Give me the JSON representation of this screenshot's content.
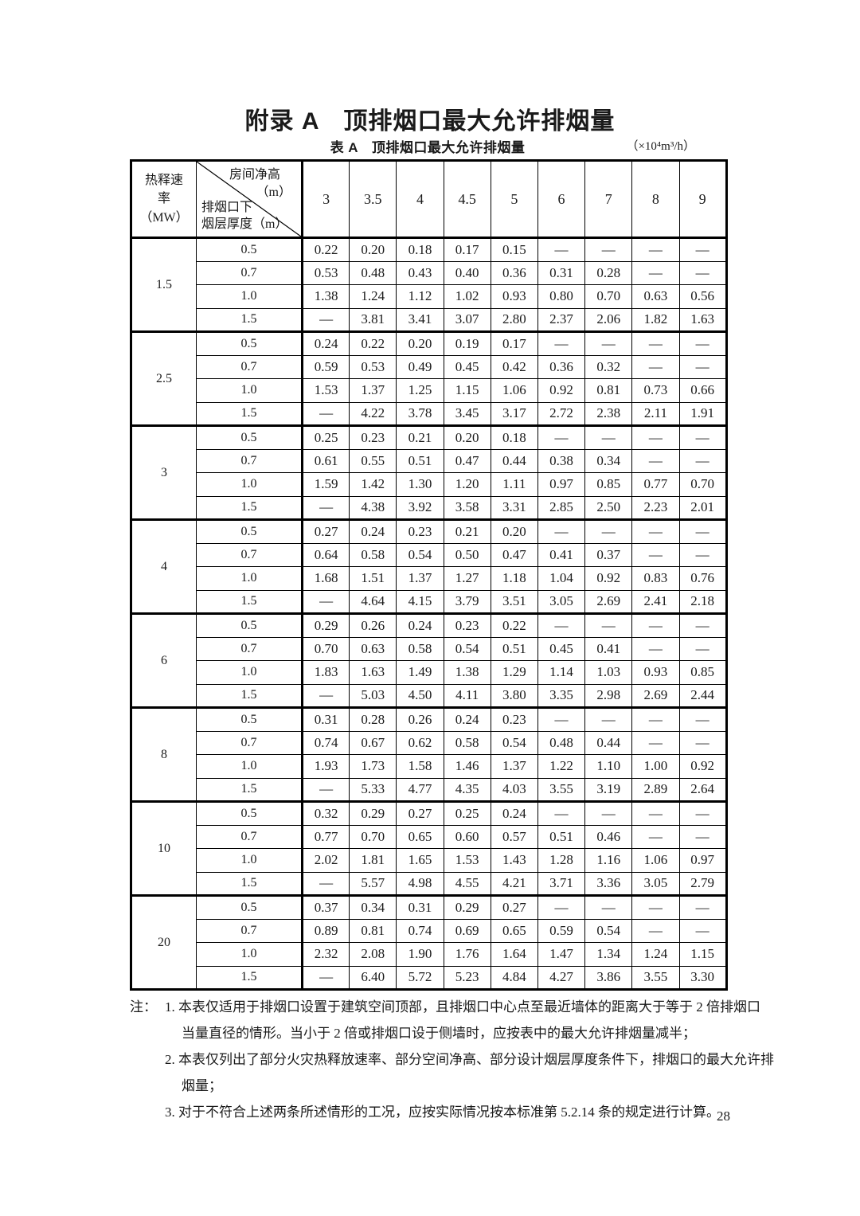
{
  "page": {
    "title": "附录 A　顶排烟口最大允许排烟量",
    "page_number": "28"
  },
  "caption": {
    "label": "表 A　顶排烟口最大允许排烟量",
    "unit": "（×10⁴m³/h）"
  },
  "table": {
    "row_axis_lines": [
      "热释速",
      "率",
      "（MW）"
    ],
    "corner": {
      "top_label": "房间净高",
      "top_unit": "（m）",
      "bottom_line1": "排烟口下",
      "bottom_line2": "烟层厚度（m）"
    },
    "columns": [
      "3",
      "3.5",
      "4",
      "4.5",
      "5",
      "6",
      "7",
      "8",
      "9"
    ],
    "blocks": [
      {
        "hrr": "1.5",
        "rows": [
          {
            "depth": "0.5",
            "values": [
              "0.22",
              "0.20",
              "0.18",
              "0.17",
              "0.15",
              "—",
              "—",
              "—",
              "—"
            ]
          },
          {
            "depth": "0.7",
            "values": [
              "0.53",
              "0.48",
              "0.43",
              "0.40",
              "0.36",
              "0.31",
              "0.28",
              "—",
              "—"
            ]
          },
          {
            "depth": "1.0",
            "values": [
              "1.38",
              "1.24",
              "1.12",
              "1.02",
              "0.93",
              "0.80",
              "0.70",
              "0.63",
              "0.56"
            ]
          },
          {
            "depth": "1.5",
            "values": [
              "—",
              "3.81",
              "3.41",
              "3.07",
              "2.80",
              "2.37",
              "2.06",
              "1.82",
              "1.63"
            ]
          }
        ]
      },
      {
        "hrr": "2.5",
        "rows": [
          {
            "depth": "0.5",
            "values": [
              "0.24",
              "0.22",
              "0.20",
              "0.19",
              "0.17",
              "—",
              "—",
              "—",
              "—"
            ]
          },
          {
            "depth": "0.7",
            "values": [
              "0.59",
              "0.53",
              "0.49",
              "0.45",
              "0.42",
              "0.36",
              "0.32",
              "—",
              "—"
            ]
          },
          {
            "depth": "1.0",
            "values": [
              "1.53",
              "1.37",
              "1.25",
              "1.15",
              "1.06",
              "0.92",
              "0.81",
              "0.73",
              "0.66"
            ]
          },
          {
            "depth": "1.5",
            "values": [
              "—",
              "4.22",
              "3.78",
              "3.45",
              "3.17",
              "2.72",
              "2.38",
              "2.11",
              "1.91"
            ]
          }
        ]
      },
      {
        "hrr": "3",
        "rows": [
          {
            "depth": "0.5",
            "values": [
              "0.25",
              "0.23",
              "0.21",
              "0.20",
              "0.18",
              "—",
              "—",
              "—",
              "—"
            ]
          },
          {
            "depth": "0.7",
            "values": [
              "0.61",
              "0.55",
              "0.51",
              "0.47",
              "0.44",
              "0.38",
              "0.34",
              "—",
              "—"
            ]
          },
          {
            "depth": "1.0",
            "values": [
              "1.59",
              "1.42",
              "1.30",
              "1.20",
              "1.11",
              "0.97",
              "0.85",
              "0.77",
              "0.70"
            ]
          },
          {
            "depth": "1.5",
            "values": [
              "—",
              "4.38",
              "3.92",
              "3.58",
              "3.31",
              "2.85",
              "2.50",
              "2.23",
              "2.01"
            ]
          }
        ]
      },
      {
        "hrr": "4",
        "rows": [
          {
            "depth": "0.5",
            "values": [
              "0.27",
              "0.24",
              "0.23",
              "0.21",
              "0.20",
              "—",
              "—",
              "—",
              "—"
            ]
          },
          {
            "depth": "0.7",
            "values": [
              "0.64",
              "0.58",
              "0.54",
              "0.50",
              "0.47",
              "0.41",
              "0.37",
              "—",
              "—"
            ]
          },
          {
            "depth": "1.0",
            "values": [
              "1.68",
              "1.51",
              "1.37",
              "1.27",
              "1.18",
              "1.04",
              "0.92",
              "0.83",
              "0.76"
            ]
          },
          {
            "depth": "1.5",
            "values": [
              "—",
              "4.64",
              "4.15",
              "3.79",
              "3.51",
              "3.05",
              "2.69",
              "2.41",
              "2.18"
            ]
          }
        ]
      },
      {
        "hrr": "6",
        "rows": [
          {
            "depth": "0.5",
            "values": [
              "0.29",
              "0.26",
              "0.24",
              "0.23",
              "0.22",
              "—",
              "—",
              "—",
              "—"
            ]
          },
          {
            "depth": "0.7",
            "values": [
              "0.70",
              "0.63",
              "0.58",
              "0.54",
              "0.51",
              "0.45",
              "0.41",
              "—",
              "—"
            ]
          },
          {
            "depth": "1.0",
            "values": [
              "1.83",
              "1.63",
              "1.49",
              "1.38",
              "1.29",
              "1.14",
              "1.03",
              "0.93",
              "0.85"
            ]
          },
          {
            "depth": "1.5",
            "values": [
              "—",
              "5.03",
              "4.50",
              "4.11",
              "3.80",
              "3.35",
              "2.98",
              "2.69",
              "2.44"
            ]
          }
        ]
      },
      {
        "hrr": "8",
        "rows": [
          {
            "depth": "0.5",
            "values": [
              "0.31",
              "0.28",
              "0.26",
              "0.24",
              "0.23",
              "—",
              "—",
              "—",
              "—"
            ]
          },
          {
            "depth": "0.7",
            "values": [
              "0.74",
              "0.67",
              "0.62",
              "0.58",
              "0.54",
              "0.48",
              "0.44",
              "—",
              "—"
            ]
          },
          {
            "depth": "1.0",
            "values": [
              "1.93",
              "1.73",
              "1.58",
              "1.46",
              "1.37",
              "1.22",
              "1.10",
              "1.00",
              "0.92"
            ]
          },
          {
            "depth": "1.5",
            "values": [
              "—",
              "5.33",
              "4.77",
              "4.35",
              "4.03",
              "3.55",
              "3.19",
              "2.89",
              "2.64"
            ]
          }
        ]
      },
      {
        "hrr": "10",
        "rows": [
          {
            "depth": "0.5",
            "values": [
              "0.32",
              "0.29",
              "0.27",
              "0.25",
              "0.24",
              "—",
              "—",
              "—",
              "—"
            ]
          },
          {
            "depth": "0.7",
            "values": [
              "0.77",
              "0.70",
              "0.65",
              "0.60",
              "0.57",
              "0.51",
              "0.46",
              "—",
              "—"
            ]
          },
          {
            "depth": "1.0",
            "values": [
              "2.02",
              "1.81",
              "1.65",
              "1.53",
              "1.43",
              "1.28",
              "1.16",
              "1.06",
              "0.97"
            ]
          },
          {
            "depth": "1.5",
            "values": [
              "—",
              "5.57",
              "4.98",
              "4.55",
              "4.21",
              "3.71",
              "3.36",
              "3.05",
              "2.79"
            ]
          }
        ]
      },
      {
        "hrr": "20",
        "rows": [
          {
            "depth": "0.5",
            "values": [
              "0.37",
              "0.34",
              "0.31",
              "0.29",
              "0.27",
              "—",
              "—",
              "—",
              "—"
            ]
          },
          {
            "depth": "0.7",
            "values": [
              "0.89",
              "0.81",
              "0.74",
              "0.69",
              "0.65",
              "0.59",
              "0.54",
              "—",
              "—"
            ]
          },
          {
            "depth": "1.0",
            "values": [
              "2.32",
              "2.08",
              "1.90",
              "1.76",
              "1.64",
              "1.47",
              "1.34",
              "1.24",
              "1.15"
            ]
          },
          {
            "depth": "1.5",
            "values": [
              "—",
              "6.40",
              "5.72",
              "5.23",
              "4.84",
              "4.27",
              "3.86",
              "3.55",
              "3.30"
            ]
          }
        ]
      }
    ]
  },
  "notes": {
    "prefix": "注：",
    "items": [
      {
        "lines": [
          "1. 本表仅适用于排烟口设置于建筑空间顶部，且排烟口中心点至最近墙体的距离大于等于 2 倍排烟口",
          "当量直径的情形。当小于 2 倍或排烟口设于侧墙时，应按表中的最大允许排烟量减半；"
        ]
      },
      {
        "lines": [
          "2. 本表仅列出了部分火灾热释放速率、部分空间净高、部分设计烟层厚度条件下，排烟口的最大允许排",
          "烟量；"
        ]
      },
      {
        "lines": [
          "3. 对于不符合上述两条所述情形的工况，应按实际情况按本标准第 5.2.14 条的规定进行计算。"
        ]
      }
    ]
  }
}
